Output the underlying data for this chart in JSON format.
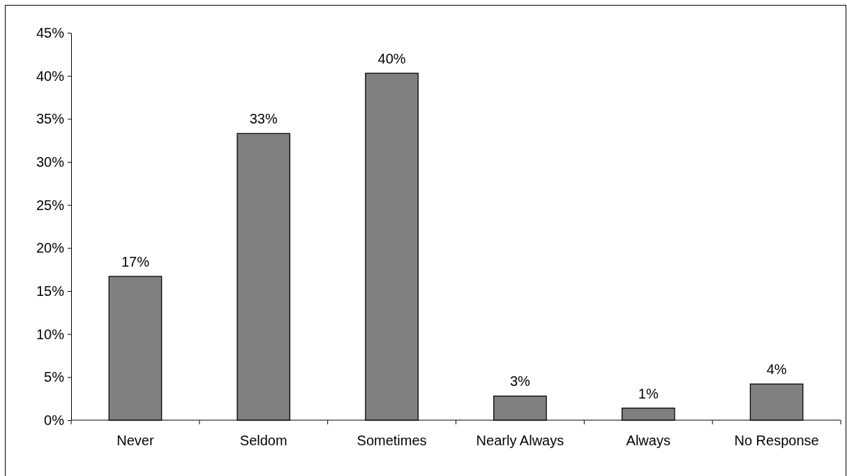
{
  "chart_data": {
    "type": "bar",
    "categories": [
      "Never",
      "Seldom",
      "Sometimes",
      "Nearly Always",
      "Always",
      "No Response"
    ],
    "values": [
      16.7,
      33.3,
      40.3,
      2.8,
      1.4,
      4.2
    ],
    "value_labels": [
      "17%",
      "33%",
      "40%",
      "3%",
      "1%",
      "4%"
    ],
    "color": "#808080",
    "ylim": [
      0,
      45
    ],
    "yticks": [
      {
        "value": 0,
        "label": "0%"
      },
      {
        "value": 5,
        "label": "5%"
      },
      {
        "value": 10,
        "label": "10%"
      },
      {
        "value": 15,
        "label": "15%"
      },
      {
        "value": 20,
        "label": "20%"
      },
      {
        "value": 25,
        "label": "25%"
      },
      {
        "value": 30,
        "label": "30%"
      },
      {
        "value": 35,
        "label": "35%"
      },
      {
        "value": 40,
        "label": "40%"
      },
      {
        "value": 45,
        "label": "45%"
      }
    ],
    "grid": false
  }
}
